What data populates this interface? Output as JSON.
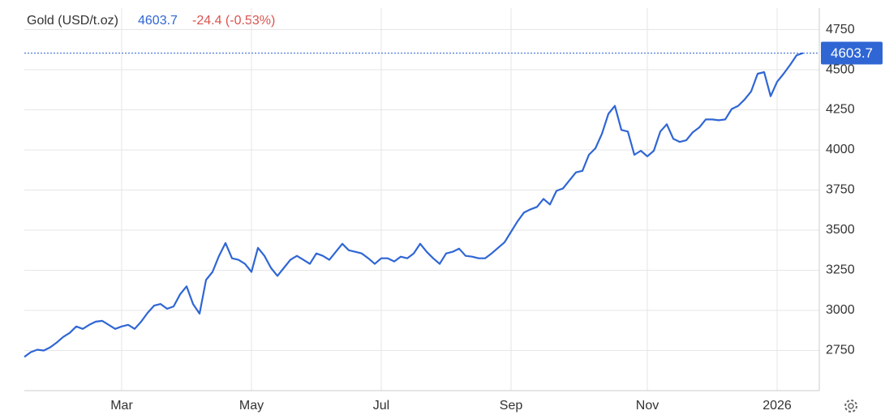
{
  "chart_data": {
    "type": "line",
    "title": "Gold (USD/t.oz)",
    "change": "-24.4 (-0.53%)",
    "categories": [
      null,
      null,
      null,
      null,
      null,
      null,
      null,
      null,
      null,
      null,
      null,
      null,
      null,
      null,
      null,
      "Mar",
      null,
      null,
      null,
      null,
      null,
      null,
      null,
      null,
      null,
      null,
      null,
      null,
      null,
      null,
      null,
      null,
      null,
      null,
      null,
      "May",
      null,
      null,
      null,
      null,
      null,
      null,
      null,
      null,
      null,
      null,
      null,
      null,
      null,
      null,
      null,
      null,
      null,
      null,
      null,
      "Jul",
      null,
      null,
      null,
      null,
      null,
      null,
      null,
      null,
      null,
      null,
      null,
      null,
      null,
      null,
      null,
      null,
      null,
      null,
      null,
      "Sep",
      null,
      null,
      null,
      null,
      null,
      null,
      null,
      null,
      null,
      null,
      null,
      null,
      null,
      null,
      null,
      null,
      null,
      null,
      null,
      null,
      "Nov",
      null,
      null,
      null,
      null,
      null,
      null,
      null,
      null,
      null,
      null,
      null,
      null,
      null,
      null,
      null,
      null,
      null,
      null,
      null,
      "2026",
      null,
      null,
      null,
      null
    ],
    "series": [
      {
        "name": "Gold",
        "color": "#2f66d4",
        "values": [
          2710,
          2740,
          2755,
          2750,
          2770,
          2800,
          2835,
          2860,
          2900,
          2885,
          2910,
          2930,
          2935,
          2910,
          2885,
          2900,
          2910,
          2885,
          2930,
          2985,
          3030,
          3040,
          3010,
          3025,
          3100,
          3150,
          3040,
          2980,
          3190,
          3240,
          3340,
          3420,
          3325,
          3315,
          3290,
          3240,
          3390,
          3340,
          3265,
          3215,
          3265,
          3315,
          3340,
          3315,
          3290,
          3355,
          3340,
          3315,
          3365,
          3415,
          3375,
          3365,
          3355,
          3325,
          3290,
          3325,
          3325,
          3305,
          3335,
          3325,
          3355,
          3415,
          3365,
          3325,
          3290,
          3355,
          3365,
          3385,
          3340,
          3335,
          3325,
          3325,
          3355,
          3390,
          3425,
          3490,
          3555,
          3610,
          3630,
          3645,
          3695,
          3660,
          3745,
          3760,
          3810,
          3860,
          3870,
          3970,
          4010,
          4100,
          4225,
          4275,
          4125,
          4115,
          3970,
          3995,
          3960,
          3995,
          4115,
          4160,
          4070,
          4050,
          4060,
          4110,
          4140,
          4190,
          4190,
          4185,
          4190,
          4255,
          4275,
          4315,
          4365,
          4475,
          4485,
          4335,
          4425,
          4475,
          4530,
          4590,
          4603.7
        ]
      }
    ],
    "ylim": [
      2500,
      4880
    ],
    "yticks": [
      2750,
      3000,
      3250,
      3500,
      3750,
      4000,
      4250,
      4500,
      4750
    ],
    "grid": true
  }
}
